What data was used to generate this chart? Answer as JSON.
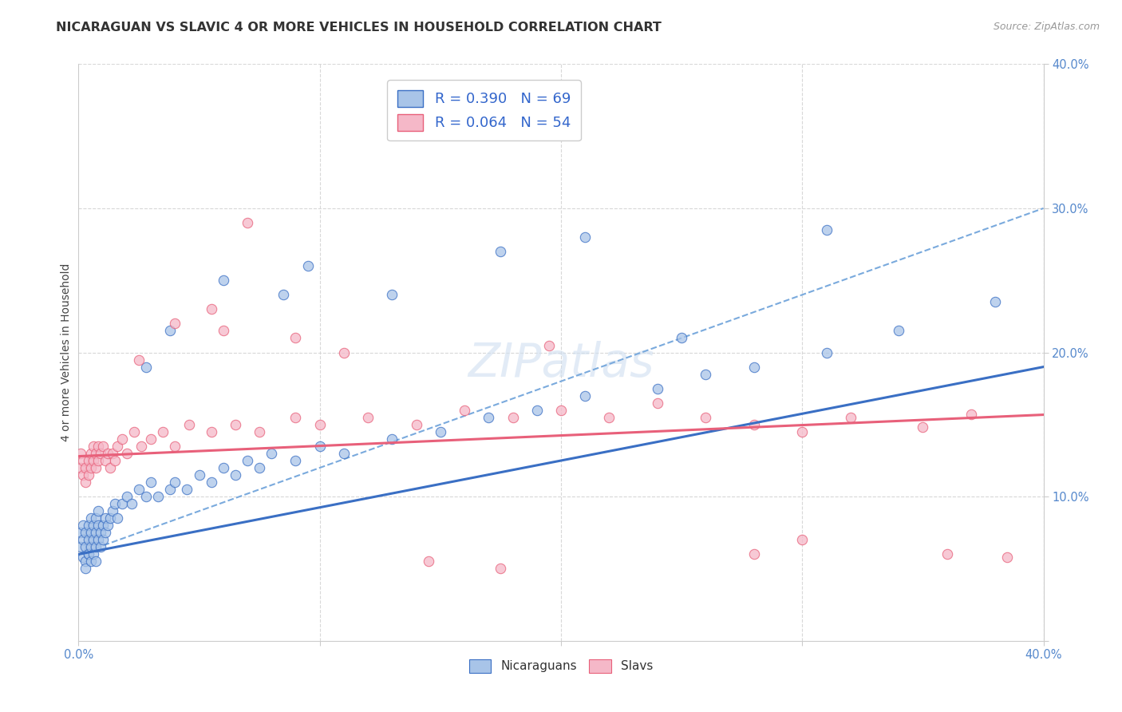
{
  "title": "NICARAGUAN VS SLAVIC 4 OR MORE VEHICLES IN HOUSEHOLD CORRELATION CHART",
  "source": "Source: ZipAtlas.com",
  "ylabel": "4 or more Vehicles in Household",
  "legend_labels": [
    "Nicaraguans",
    "Slavs"
  ],
  "legend_r": [
    0.39,
    0.064
  ],
  "legend_n": [
    69,
    54
  ],
  "nicaraguan_color": "#a8c4e8",
  "slavic_color": "#f5b8c8",
  "trend_nicaraguan_color": "#3a6fc4",
  "trend_slavic_color": "#e8607a",
  "dash_color": "#7aaadd",
  "background_color": "#ffffff",
  "grid_color": "#d8d8d8",
  "tick_color": "#5588cc",
  "title_color": "#333333",
  "source_color": "#999999",
  "ylabel_color": "#444444",
  "xlim": [
    0.0,
    0.4
  ],
  "ylim": [
    0.0,
    0.4
  ],
  "nic_trend_intercept": 0.06,
  "nic_trend_slope": 0.325,
  "slav_trend_intercept": 0.128,
  "slav_trend_slope": 0.072,
  "dash_intercept": 0.06,
  "dash_slope": 0.6,
  "nicaraguan_scatter_x": [
    0.001,
    0.001,
    0.002,
    0.002,
    0.002,
    0.003,
    0.003,
    0.003,
    0.003,
    0.004,
    0.004,
    0.004,
    0.004,
    0.005,
    0.005,
    0.005,
    0.005,
    0.006,
    0.006,
    0.006,
    0.007,
    0.007,
    0.007,
    0.007,
    0.008,
    0.008,
    0.008,
    0.009,
    0.009,
    0.01,
    0.01,
    0.011,
    0.011,
    0.012,
    0.013,
    0.014,
    0.015,
    0.016,
    0.018,
    0.02,
    0.022,
    0.025,
    0.028,
    0.03,
    0.033,
    0.038,
    0.04,
    0.045,
    0.05,
    0.055,
    0.06,
    0.065,
    0.07,
    0.075,
    0.08,
    0.09,
    0.1,
    0.11,
    0.13,
    0.15,
    0.17,
    0.19,
    0.21,
    0.24,
    0.26,
    0.28,
    0.31,
    0.34,
    0.38
  ],
  "nicaraguan_scatter_y": [
    0.065,
    0.075,
    0.058,
    0.07,
    0.08,
    0.055,
    0.065,
    0.075,
    0.05,
    0.06,
    0.07,
    0.08,
    0.06,
    0.055,
    0.065,
    0.075,
    0.085,
    0.06,
    0.07,
    0.08,
    0.065,
    0.075,
    0.085,
    0.055,
    0.07,
    0.08,
    0.09,
    0.065,
    0.075,
    0.07,
    0.08,
    0.075,
    0.085,
    0.08,
    0.085,
    0.09,
    0.095,
    0.085,
    0.095,
    0.1,
    0.095,
    0.105,
    0.1,
    0.11,
    0.1,
    0.105,
    0.11,
    0.105,
    0.115,
    0.11,
    0.12,
    0.115,
    0.125,
    0.12,
    0.13,
    0.125,
    0.135,
    0.13,
    0.14,
    0.145,
    0.155,
    0.16,
    0.17,
    0.175,
    0.185,
    0.19,
    0.2,
    0.215,
    0.235
  ],
  "slavic_scatter_x": [
    0.001,
    0.001,
    0.002,
    0.002,
    0.003,
    0.003,
    0.004,
    0.004,
    0.005,
    0.005,
    0.006,
    0.006,
    0.007,
    0.007,
    0.008,
    0.008,
    0.009,
    0.01,
    0.011,
    0.012,
    0.013,
    0.014,
    0.015,
    0.016,
    0.018,
    0.02,
    0.023,
    0.026,
    0.03,
    0.035,
    0.04,
    0.046,
    0.055,
    0.065,
    0.075,
    0.09,
    0.1,
    0.12,
    0.14,
    0.16,
    0.18,
    0.2,
    0.22,
    0.24,
    0.26,
    0.28,
    0.3,
    0.32,
    0.35,
    0.37,
    0.145,
    0.175,
    0.28,
    0.385
  ],
  "slavic_scatter_y": [
    0.12,
    0.13,
    0.115,
    0.125,
    0.11,
    0.12,
    0.115,
    0.125,
    0.12,
    0.13,
    0.125,
    0.135,
    0.12,
    0.13,
    0.125,
    0.135,
    0.13,
    0.135,
    0.125,
    0.13,
    0.12,
    0.13,
    0.125,
    0.135,
    0.14,
    0.13,
    0.145,
    0.135,
    0.14,
    0.145,
    0.135,
    0.15,
    0.145,
    0.15,
    0.145,
    0.155,
    0.15,
    0.155,
    0.15,
    0.16,
    0.155,
    0.16,
    0.155,
    0.165,
    0.155,
    0.15,
    0.145,
    0.155,
    0.148,
    0.157,
    0.055,
    0.05,
    0.06,
    0.058
  ],
  "extra_nic_x": [
    0.028,
    0.038,
    0.06,
    0.085,
    0.095,
    0.13,
    0.175,
    0.21,
    0.25,
    0.31
  ],
  "extra_nic_y": [
    0.19,
    0.215,
    0.25,
    0.24,
    0.26,
    0.24,
    0.27,
    0.28,
    0.21,
    0.285
  ],
  "extra_slav_x": [
    0.025,
    0.04,
    0.055,
    0.06,
    0.07,
    0.09,
    0.11,
    0.195,
    0.3,
    0.36
  ],
  "extra_slav_y": [
    0.195,
    0.22,
    0.23,
    0.215,
    0.29,
    0.21,
    0.2,
    0.205,
    0.07,
    0.06
  ]
}
